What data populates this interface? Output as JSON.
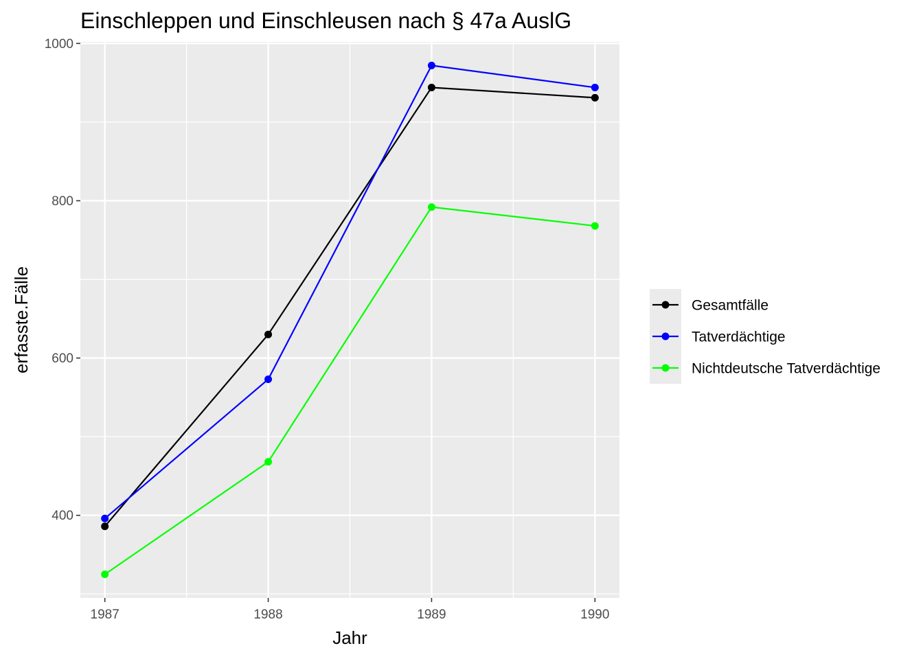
{
  "chart_data": {
    "type": "line",
    "title": "Einschleppen und Einschleusen nach § 47a AuslG",
    "xlabel": "Jahr",
    "ylabel": "erfasste.Fälle",
    "x": [
      1987,
      1988,
      1989,
      1990
    ],
    "xlim": [
      1986.85,
      1990.15
    ],
    "ylim": [
      295,
      1002
    ],
    "yticks": [
      400,
      600,
      800,
      1000
    ],
    "grid": true,
    "legend_position": "right",
    "series": [
      {
        "name": "Gesamtfälle",
        "color": "#000000",
        "values": [
          386,
          630,
          944,
          931
        ]
      },
      {
        "name": "Tatverdächtige",
        "color": "#0000ff",
        "values": [
          396,
          573,
          972,
          944
        ]
      },
      {
        "name": "Nichtdeutsche Tatverdächtige",
        "color": "#00ff00",
        "values": [
          325,
          468,
          792,
          768
        ]
      }
    ]
  }
}
